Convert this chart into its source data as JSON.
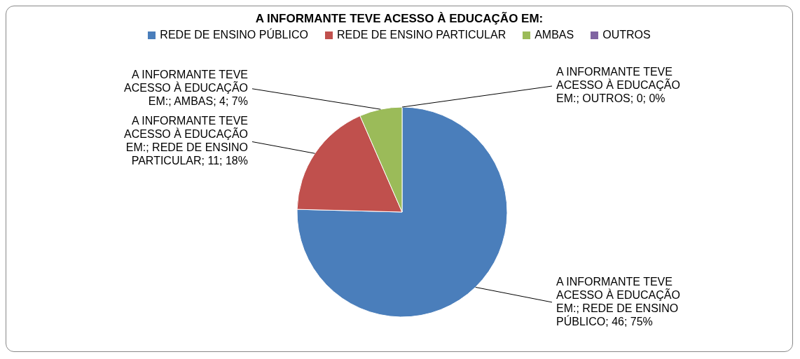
{
  "chart_data": {
    "type": "pie",
    "title": "A INFORMANTE TEVE ACESSO À EDUCAÇÃO EM:",
    "categories": [
      "REDE DE ENSINO PÚBLICO",
      "REDE DE ENSINO PARTICULAR",
      "AMBAS",
      "OUTROS"
    ],
    "values": [
      46,
      11,
      4,
      0
    ],
    "colors": [
      "#4a7ebb",
      "#c0504d",
      "#9bbb59",
      "#8064a2"
    ],
    "value_labels": [
      "A INFORMANTE TEVE ACESSO À EDUCAÇÃO EM:; REDE DE ENSINO PÚBLICO; 46; 75%",
      "A INFORMANTE TEVE ACESSO À EDUCAÇÃO EM:; REDE DE ENSINO PARTICULAR; 11; 18%",
      "A INFORMANTE TEVE ACESSO À EDUCAÇÃO EM:; AMBAS; 4; 7%",
      "A INFORMANTE TEVE ACESSO À EDUCAÇÃO EM:; OUTROS; 0; 0%"
    ],
    "legend": "top"
  }
}
